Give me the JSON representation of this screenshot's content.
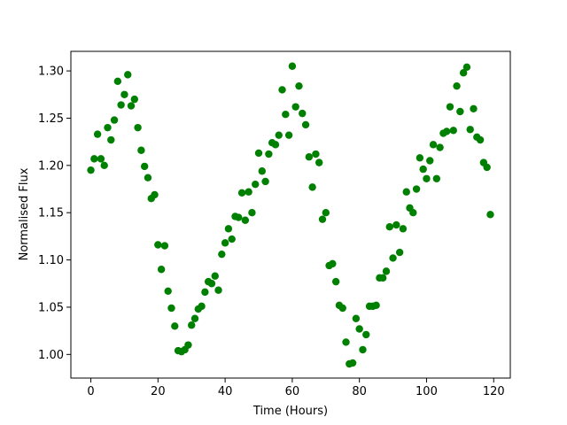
{
  "chart_data": {
    "type": "scatter",
    "xlabel": "Time (Hours)",
    "ylabel": "Normalised Flux",
    "color": "green",
    "x": [
      0,
      1,
      2,
      3,
      4,
      5,
      6,
      7,
      8,
      9,
      10,
      11,
      12,
      13,
      14,
      15,
      16,
      17,
      18,
      19,
      20,
      21,
      22,
      23,
      24,
      25,
      26,
      27,
      28,
      29,
      30,
      31,
      32,
      33,
      34,
      35,
      36,
      37,
      38,
      39,
      40,
      41,
      42,
      43,
      44,
      45,
      46,
      47,
      48,
      49,
      50,
      51,
      52,
      53,
      54,
      55,
      56,
      57,
      58,
      59,
      60,
      61,
      62,
      63,
      64,
      65,
      66,
      67,
      68,
      69,
      70,
      71,
      72,
      73,
      74,
      75,
      76,
      77,
      78,
      79,
      80,
      81,
      82,
      83,
      84,
      85,
      86,
      87,
      88,
      89,
      90,
      91,
      92,
      93,
      94,
      95,
      96,
      97,
      98,
      99,
      100,
      101,
      102,
      103,
      104,
      105,
      106,
      107,
      108,
      109,
      110,
      111,
      112,
      113,
      114,
      115,
      116,
      117,
      118,
      119
    ],
    "values": [
      1.195,
      1.207,
      1.233,
      1.207,
      1.2,
      1.24,
      1.227,
      1.248,
      1.289,
      1.264,
      1.275,
      1.296,
      1.263,
      1.27,
      1.24,
      1.216,
      1.199,
      1.187,
      1.165,
      1.169,
      1.116,
      1.09,
      1.115,
      1.067,
      1.049,
      1.03,
      1.004,
      1.003,
      1.005,
      1.01,
      1.031,
      1.038,
      1.048,
      1.051,
      1.066,
      1.077,
      1.075,
      1.083,
      1.068,
      1.106,
      1.118,
      1.133,
      1.122,
      1.146,
      1.145,
      1.171,
      1.142,
      1.172,
      1.15,
      1.18,
      1.213,
      1.194,
      1.183,
      1.212,
      1.224,
      1.222,
      1.232,
      1.28,
      1.254,
      1.232,
      1.305,
      1.262,
      1.284,
      1.255,
      1.243,
      1.209,
      1.177,
      1.212,
      1.203,
      1.143,
      1.15,
      1.094,
      1.096,
      1.077,
      1.052,
      1.049,
      1.013,
      0.99,
      0.991,
      1.038,
      1.027,
      1.005,
      1.021,
      1.051,
      1.051,
      1.052,
      1.081,
      1.081,
      1.088,
      1.135,
      1.102,
      1.137,
      1.108,
      1.133,
      1.172,
      1.155,
      1.15,
      1.175,
      1.208,
      1.196,
      1.186,
      1.205,
      1.222,
      1.186,
      1.219,
      1.234,
      1.236,
      1.262,
      1.237,
      1.284,
      1.257,
      1.298,
      1.304,
      1.238,
      1.26,
      1.23,
      1.227,
      1.203,
      1.198,
      1.148
    ],
    "xlim": [
      -5.95,
      124.95
    ],
    "ylim": [
      0.975,
      1.3207
    ],
    "xticks": [
      0,
      20,
      40,
      60,
      80,
      100,
      120
    ],
    "yticks": [
      {
        "value": 1.0,
        "label": "1.00"
      },
      1.05,
      {
        "value": 1.1,
        "label": "1.10"
      },
      1.15,
      {
        "value": 1.2,
        "label": "1.20"
      },
      1.25,
      {
        "value": 1.3,
        "label": "1.30"
      }
    ],
    "grid": false
  }
}
